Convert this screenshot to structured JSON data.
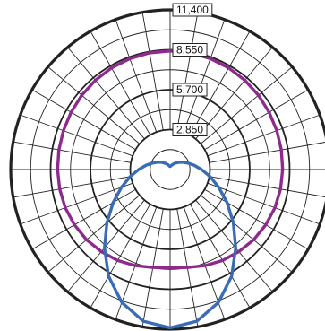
{
  "chart_data": {
    "type": "polar-line",
    "title": "",
    "radial_ticks": [
      "2,850",
      "5,700",
      "8,550",
      "11,400"
    ],
    "radial_tick_values": [
      2850,
      5700,
      8550,
      11400
    ],
    "rmax": 11400,
    "angular_gridlines_deg": 10,
    "angle_convention": "0 = straight down, degrees clockwise",
    "colors": {
      "grid": "#222222",
      "purple": "#8e2a8e",
      "blue": "#3a6cb5"
    },
    "series": [
      {
        "color": "#8e2a8e",
        "points": [
          [
            0,
            7000
          ],
          [
            10,
            7100
          ],
          [
            20,
            7300
          ],
          [
            30,
            7500
          ],
          [
            40,
            7650
          ],
          [
            50,
            7800
          ],
          [
            60,
            7900
          ],
          [
            70,
            7980
          ],
          [
            80,
            8020
          ],
          [
            90,
            8050
          ],
          [
            100,
            8080
          ],
          [
            110,
            8120
          ],
          [
            120,
            8180
          ],
          [
            130,
            8250
          ],
          [
            140,
            8320
          ],
          [
            150,
            8380
          ],
          [
            160,
            8430
          ],
          [
            170,
            8460
          ],
          [
            180,
            8470
          ],
          [
            190,
            8460
          ],
          [
            200,
            8430
          ],
          [
            210,
            8380
          ],
          [
            220,
            8320
          ],
          [
            230,
            8250
          ],
          [
            240,
            8180
          ],
          [
            250,
            8120
          ],
          [
            260,
            8080
          ],
          [
            270,
            8050
          ],
          [
            280,
            8020
          ],
          [
            290,
            7980
          ],
          [
            300,
            7900
          ],
          [
            310,
            7800
          ],
          [
            320,
            7650
          ],
          [
            330,
            7500
          ],
          [
            340,
            7300
          ],
          [
            350,
            7100
          ],
          [
            360,
            7000
          ]
        ]
      },
      {
        "color": "#3a6cb5",
        "points": [
          [
            0,
            11300
          ],
          [
            10,
            11000
          ],
          [
            20,
            10100
          ],
          [
            30,
            8800
          ],
          [
            40,
            7300
          ],
          [
            50,
            5900
          ],
          [
            60,
            4700
          ],
          [
            70,
            3700
          ],
          [
            80,
            2900
          ],
          [
            90,
            2250
          ],
          [
            100,
            1750
          ],
          [
            110,
            1350
          ],
          [
            120,
            1050
          ],
          [
            130,
            800
          ],
          [
            140,
            600
          ],
          [
            150,
            450
          ],
          [
            160,
            330
          ],
          [
            170,
            250
          ],
          [
            180,
            220
          ],
          [
            190,
            250
          ],
          [
            200,
            330
          ],
          [
            210,
            450
          ],
          [
            220,
            600
          ],
          [
            230,
            800
          ],
          [
            240,
            1050
          ],
          [
            250,
            1350
          ],
          [
            260,
            1750
          ],
          [
            270,
            2250
          ],
          [
            280,
            2900
          ],
          [
            290,
            3700
          ],
          [
            300,
            4700
          ],
          [
            310,
            5900
          ],
          [
            320,
            7300
          ],
          [
            330,
            8800
          ],
          [
            340,
            10100
          ],
          [
            350,
            11000
          ],
          [
            360,
            11300
          ]
        ]
      }
    ]
  }
}
